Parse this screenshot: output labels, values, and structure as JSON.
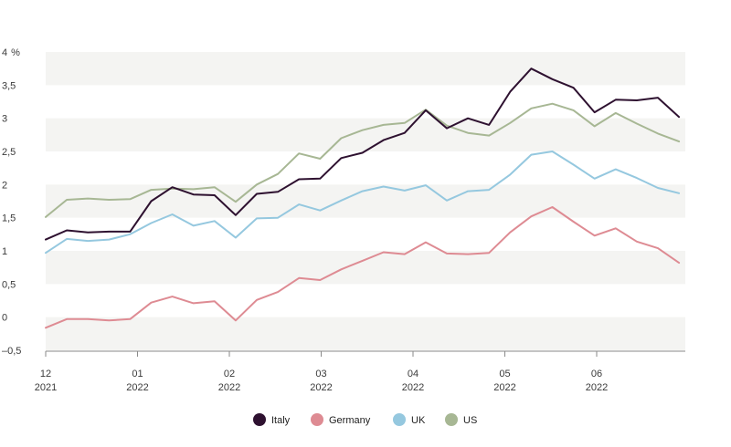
{
  "chart_data": {
    "type": "line",
    "title": "",
    "xlabel": "",
    "ylabel": "",
    "unit_label": "%",
    "ylim": [
      -0.5,
      4
    ],
    "y_ticks": [
      {
        "value": 4,
        "label": "4"
      },
      {
        "value": 3.5,
        "label": "3,5"
      },
      {
        "value": 3,
        "label": "3"
      },
      {
        "value": 2.5,
        "label": "2,5"
      },
      {
        "value": 2,
        "label": "2"
      },
      {
        "value": 1.5,
        "label": "1,5"
      },
      {
        "value": 1,
        "label": "1"
      },
      {
        "value": 0.5,
        "label": "0,5"
      },
      {
        "value": 0,
        "label": "0"
      },
      {
        "value": -0.5,
        "label": "–0,5"
      }
    ],
    "x_ticks": [
      {
        "month": "12",
        "year": "2021"
      },
      {
        "month": "01",
        "year": "2022"
      },
      {
        "month": "02",
        "year": "2022"
      },
      {
        "month": "03",
        "year": "2022"
      },
      {
        "month": "04",
        "year": "2022"
      },
      {
        "month": "05",
        "year": "2022"
      },
      {
        "month": "06",
        "year": "2022"
      }
    ],
    "points_per_month": 4.35,
    "grid": "alternating horizontal bands",
    "legend_position": "bottom-center",
    "series": [
      {
        "name": "Italy",
        "color": "#2e1130",
        "values": [
          1.17,
          1.31,
          1.28,
          1.29,
          1.29,
          1.75,
          1.96,
          1.85,
          1.84,
          1.54,
          1.86,
          1.89,
          2.08,
          2.09,
          2.4,
          2.48,
          2.67,
          2.78,
          3.12,
          2.85,
          3.0,
          2.9,
          3.4,
          3.75,
          3.59,
          3.46,
          3.09,
          3.28,
          3.27,
          3.31,
          3.02
        ]
      },
      {
        "name": "Germany",
        "color": "#de8b93",
        "values": [
          -0.16,
          -0.03,
          -0.03,
          -0.05,
          -0.03,
          0.22,
          0.31,
          0.21,
          0.24,
          -0.05,
          0.26,
          0.38,
          0.59,
          0.56,
          0.72,
          0.85,
          0.98,
          0.95,
          1.13,
          0.96,
          0.95,
          0.97,
          1.28,
          1.52,
          1.66,
          1.44,
          1.23,
          1.34,
          1.14,
          1.04,
          0.82
        ]
      },
      {
        "name": "UK",
        "color": "#95c8df",
        "values": [
          0.97,
          1.18,
          1.15,
          1.17,
          1.25,
          1.42,
          1.55,
          1.38,
          1.45,
          1.2,
          1.49,
          1.5,
          1.7,
          1.61,
          1.76,
          1.9,
          1.97,
          1.91,
          1.99,
          1.76,
          1.9,
          1.92,
          2.15,
          2.45,
          2.5,
          2.3,
          2.09,
          2.23,
          2.1,
          1.95,
          1.87
        ]
      },
      {
        "name": "US",
        "color": "#a7b794",
        "values": [
          1.51,
          1.77,
          1.79,
          1.77,
          1.78,
          1.92,
          1.94,
          1.93,
          1.96,
          1.74,
          2.0,
          2.16,
          2.47,
          2.39,
          2.7,
          2.82,
          2.9,
          2.93,
          3.13,
          2.89,
          2.78,
          2.74,
          2.93,
          3.15,
          3.22,
          3.12,
          2.88,
          3.08,
          2.92,
          2.77,
          2.65
        ]
      }
    ]
  }
}
